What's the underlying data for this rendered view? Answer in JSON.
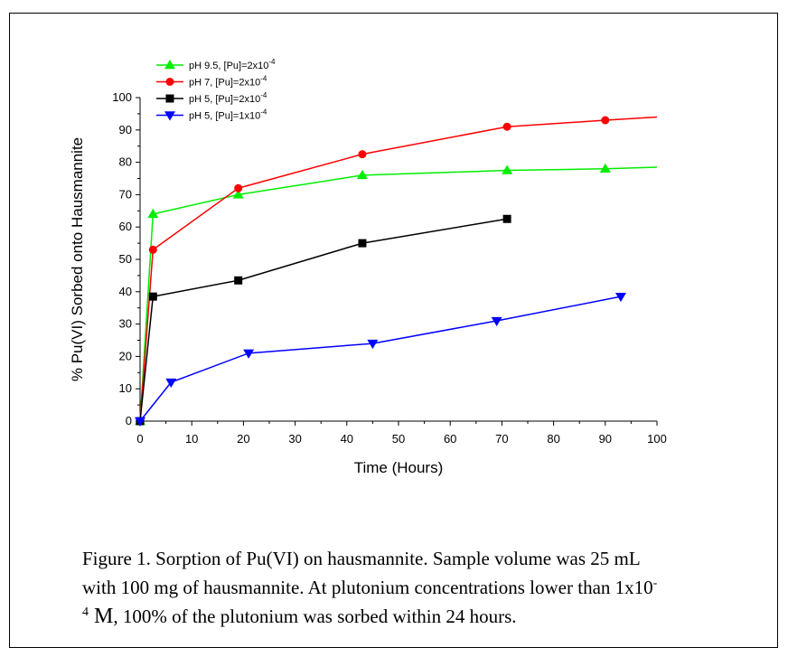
{
  "chart_data": {
    "type": "line",
    "xlabel": "Time (Hours)",
    "ylabel": "% Pu(VI) Sorbed onto Hausmannite",
    "xlim": [
      0,
      100
    ],
    "ylim": [
      0,
      100
    ],
    "xticks": [
      0,
      10,
      20,
      30,
      40,
      50,
      60,
      70,
      80,
      90,
      100
    ],
    "yticks": [
      0,
      10,
      20,
      30,
      40,
      50,
      60,
      70,
      80,
      90,
      100
    ],
    "legend_position": "top-left",
    "series": [
      {
        "name": "pH 9.5, [Pu]=2x10",
        "name_sup": "-4",
        "color": "#00ee00",
        "marker": "triangle-up",
        "x": [
          0,
          2.5,
          19,
          43,
          71,
          90
        ],
        "y": [
          0,
          64,
          70,
          76,
          77.5,
          78
        ],
        "line_extends_to_x": 100,
        "line_end_y": 78.5
      },
      {
        "name": "pH 7, [Pu]=2x10",
        "name_sup": "-4",
        "color": "#ff0000",
        "marker": "circle",
        "x": [
          0,
          2.5,
          19,
          43,
          71,
          90
        ],
        "y": [
          0,
          53,
          72,
          82.5,
          91,
          93
        ],
        "line_extends_to_x": 100,
        "line_end_y": 94
      },
      {
        "name": "pH 5, [Pu]=2x10",
        "name_sup": "-4",
        "color": "#000000",
        "marker": "square",
        "x": [
          0,
          2.5,
          19,
          43,
          71
        ],
        "y": [
          0,
          38.5,
          43.5,
          55,
          62.5
        ]
      },
      {
        "name": "pH 5, [Pu]=1x10",
        "name_sup": "-4",
        "color": "#0000ff",
        "marker": "triangle-down",
        "x": [
          0,
          6,
          21,
          45,
          69,
          93
        ],
        "y": [
          0,
          12,
          21,
          24,
          31,
          38.5
        ]
      }
    ]
  },
  "caption": {
    "line1": "Figure 1.  Sorption of Pu(VI) on hausmannite.  Sample volume was 25 mL",
    "line2": "with 100 mg of hausmannite.  At plutonium concentrations lower than 1x10",
    "line2_sup": "-",
    "line3_sup": "4",
    "line3_unit": " M",
    "line3": ", 100% of the plutonium was sorbed within 24 hours."
  }
}
